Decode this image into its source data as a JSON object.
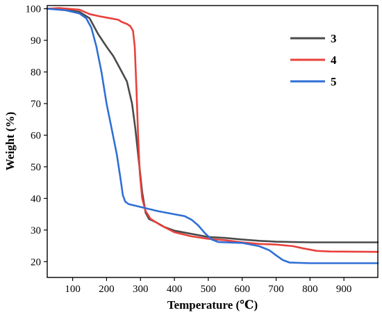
{
  "chart_data": {
    "type": "line",
    "xlabel": "Temperature (℃)",
    "ylabel": "Weight (%)",
    "xlim": [
      25,
      1000
    ],
    "ylim": [
      15,
      101
    ],
    "x_ticks": [
      100,
      200,
      300,
      400,
      500,
      600,
      700,
      800,
      900
    ],
    "y_ticks": [
      20,
      30,
      40,
      50,
      60,
      70,
      80,
      90,
      100
    ],
    "legend_position": "top-right",
    "grid": false,
    "series": [
      {
        "name": "3",
        "color": "#4a4a4a",
        "points": [
          [
            25,
            100
          ],
          [
            80,
            99.6
          ],
          [
            120,
            99
          ],
          [
            150,
            97
          ],
          [
            175,
            92
          ],
          [
            200,
            88
          ],
          [
            220,
            85
          ],
          [
            240,
            81
          ],
          [
            260,
            77
          ],
          [
            275,
            70
          ],
          [
            285,
            62
          ],
          [
            295,
            52
          ],
          [
            305,
            42
          ],
          [
            315,
            35.5
          ],
          [
            325,
            33.5
          ],
          [
            345,
            32.5
          ],
          [
            370,
            31
          ],
          [
            400,
            29.8
          ],
          [
            450,
            28.8
          ],
          [
            500,
            27.8
          ],
          [
            550,
            27.5
          ],
          [
            600,
            27
          ],
          [
            650,
            26.6
          ],
          [
            700,
            26.3
          ],
          [
            750,
            26.2
          ],
          [
            800,
            26.1
          ],
          [
            900,
            26.1
          ],
          [
            1000,
            26.1
          ]
        ]
      },
      {
        "name": "4",
        "color": "#e8403a",
        "points": [
          [
            25,
            100
          ],
          [
            60,
            100.2
          ],
          [
            120,
            99.7
          ],
          [
            150,
            98.3
          ],
          [
            180,
            97.6
          ],
          [
            210,
            97
          ],
          [
            235,
            96.5
          ],
          [
            245,
            95.8
          ],
          [
            260,
            95.2
          ],
          [
            270,
            94.5
          ],
          [
            278,
            93
          ],
          [
            283,
            88
          ],
          [
            288,
            75
          ],
          [
            293,
            60
          ],
          [
            298,
            48
          ],
          [
            305,
            40
          ],
          [
            315,
            36
          ],
          [
            330,
            33.5
          ],
          [
            360,
            31.5
          ],
          [
            400,
            29.3
          ],
          [
            450,
            28
          ],
          [
            500,
            27.2
          ],
          [
            550,
            26.8
          ],
          [
            600,
            26.1
          ],
          [
            650,
            25.6
          ],
          [
            700,
            25.4
          ],
          [
            750,
            24.9
          ],
          [
            780,
            24.2
          ],
          [
            820,
            23.4
          ],
          [
            860,
            23.2
          ],
          [
            1000,
            23.1
          ]
        ]
      },
      {
        "name": "5",
        "color": "#2f6fd6",
        "points": [
          [
            25,
            100
          ],
          [
            80,
            99.5
          ],
          [
            120,
            98.5
          ],
          [
            140,
            97
          ],
          [
            155,
            94
          ],
          [
            170,
            88
          ],
          [
            185,
            80
          ],
          [
            200,
            70
          ],
          [
            215,
            62
          ],
          [
            230,
            54
          ],
          [
            240,
            47
          ],
          [
            248,
            41
          ],
          [
            255,
            39
          ],
          [
            265,
            38.2
          ],
          [
            300,
            37.3
          ],
          [
            350,
            36
          ],
          [
            400,
            35
          ],
          [
            430,
            34.4
          ],
          [
            450,
            33.3
          ],
          [
            470,
            31.5
          ],
          [
            490,
            29
          ],
          [
            510,
            27
          ],
          [
            530,
            26.2
          ],
          [
            600,
            25.9
          ],
          [
            650,
            24.9
          ],
          [
            680,
            23.6
          ],
          [
            700,
            22
          ],
          [
            720,
            20.5
          ],
          [
            740,
            19.7
          ],
          [
            800,
            19.5
          ],
          [
            1000,
            19.5
          ]
        ]
      }
    ]
  }
}
